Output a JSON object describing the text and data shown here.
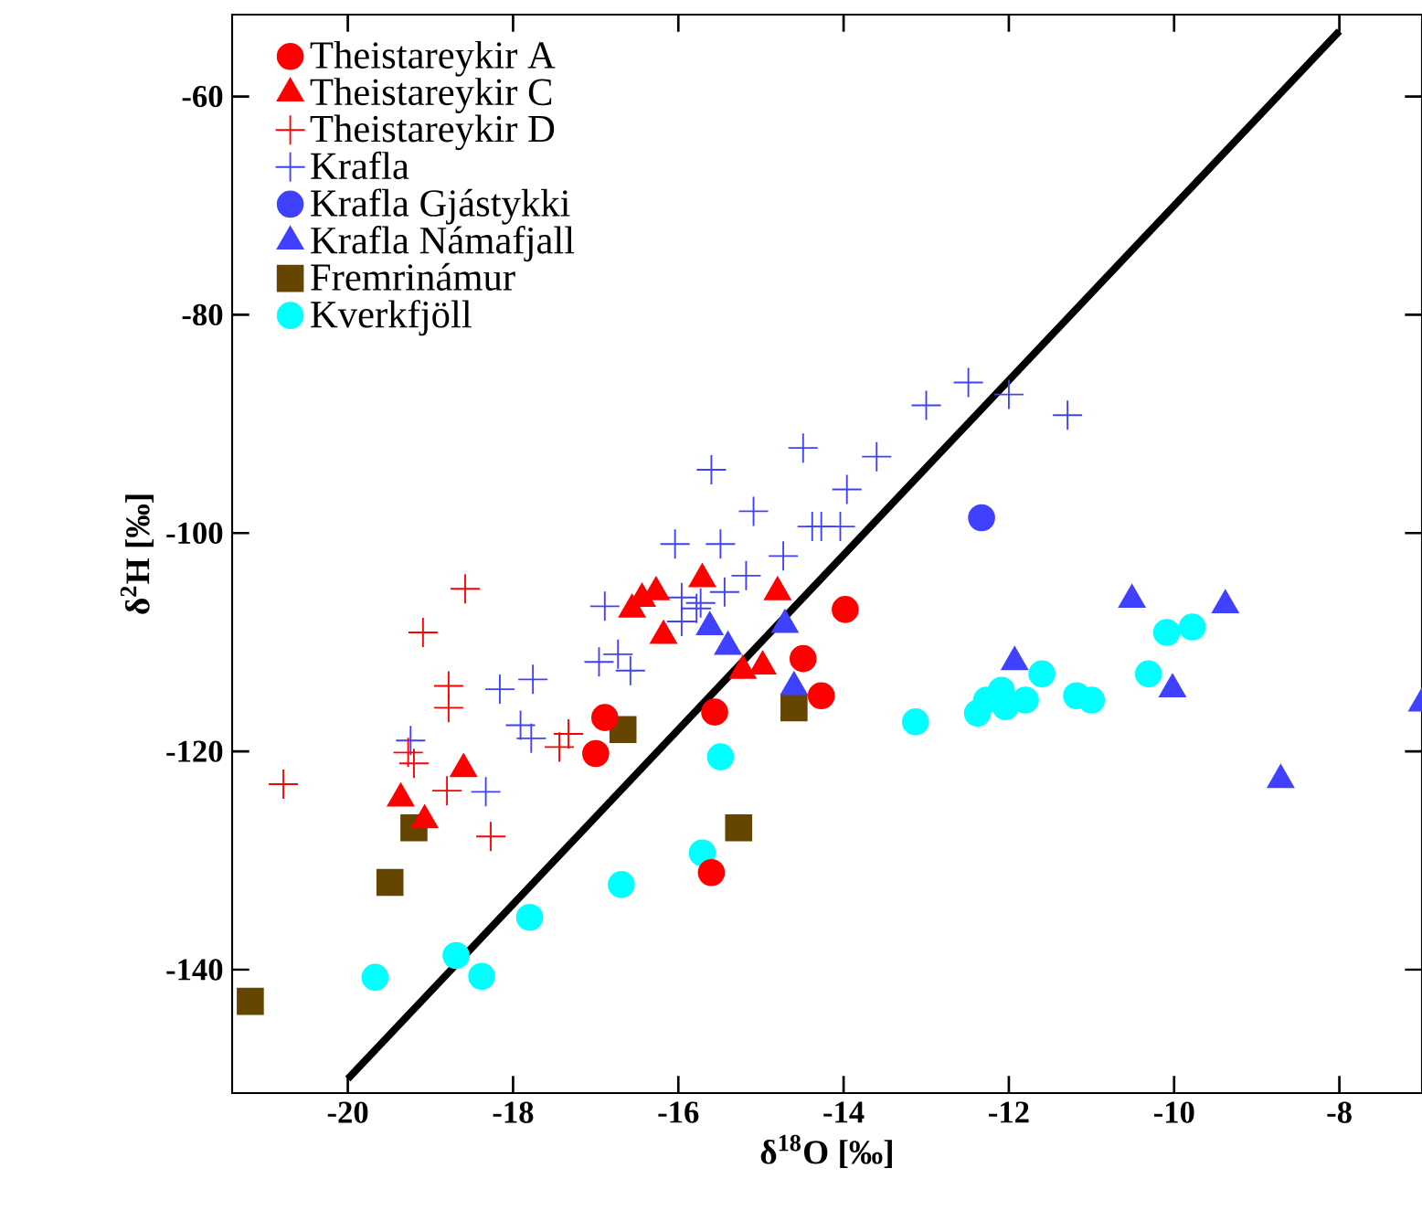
{
  "chart_data": {
    "type": "scatter",
    "xlabel": "δ$^{18}$O [‰]",
    "ylabel": "δ$^{2}$H [‰]",
    "xlim": [
      -21.4,
      -7
    ],
    "ylim": [
      -151.3,
      -52.5
    ],
    "xticks": [
      -20,
      -18,
      -16,
      -14,
      -12,
      -10,
      -8
    ],
    "yticks": [
      -140,
      -120,
      -100,
      -80,
      -60
    ],
    "grid": false,
    "legend": "top left",
    "series": [
      {
        "name": "Theistareykir A",
        "color": "#ff0000",
        "marker": "circle",
        "x": [
          -16.89,
          -17.0,
          -15.56,
          -14.49,
          -14.27,
          -13.98,
          -15.6
        ],
        "values": [
          -116.9,
          -120.2,
          -116.4,
          -111.5,
          -114.9,
          -107.0,
          -131.1
        ]
      },
      {
        "name": "Theistareykir C",
        "color": "#ff0000",
        "marker": "triangle",
        "x": [
          -18.6,
          -19.36,
          -19.07,
          -16.56,
          -16.44,
          -16.27,
          -16.18,
          -15.71,
          -14.8,
          -15.22,
          -14.98
        ],
        "values": [
          -121.6,
          -124.3,
          -126.3,
          -107.0,
          -106.0,
          -105.4,
          -109.4,
          -104.2,
          -105.4,
          -112.6,
          -112.2
        ]
      },
      {
        "name": "Theistareykir D",
        "color": "#ff0000",
        "marker": "cross",
        "x": [
          -18.58,
          -19.09,
          -18.78,
          -18.78,
          -20.78,
          -19.27,
          -19.2,
          -18.8,
          -18.27,
          -17.33,
          -17.44
        ],
        "values": [
          -105.1,
          -109.1,
          -114.0,
          -116.0,
          -123.0,
          -120.1,
          -121.1,
          -123.6,
          -127.8,
          -118.4,
          -119.6
        ]
      },
      {
        "name": "Krafla",
        "color": "#4040ff",
        "marker": "cross",
        "x": [
          -16.89,
          -19.24,
          -18.16,
          -17.76,
          -17.91,
          -17.78,
          -18.33,
          -16.96,
          -16.73,
          -16.58,
          -15.6,
          -14.49,
          -13.6,
          -15.09,
          -13.96,
          -16.04,
          -15.49,
          -14.73,
          -15.18,
          -15.44,
          -15.78,
          -15.96,
          -15.96,
          -15.73,
          -14.38,
          -14.27,
          -14.04,
          -13.0,
          -12.49,
          -12.0,
          -11.29
        ],
        "values": [
          -106.7,
          -119.0,
          -114.3,
          -113.4,
          -117.6,
          -118.8,
          -123.7,
          -111.8,
          -111.1,
          -112.6,
          -94.2,
          -92.2,
          -93.0,
          -98.0,
          -96.0,
          -101.0,
          -101.0,
          -102.1,
          -103.9,
          -105.4,
          -106.9,
          -105.9,
          -108.1,
          -106.4,
          -99.4,
          -99.4,
          -99.4,
          -88.3,
          -86.2,
          -87.3,
          -89.2
        ]
      },
      {
        "name": "Krafla Gjástykki",
        "color": "#4040ff",
        "marker": "circle",
        "x": [
          -12.33
        ],
        "values": [
          -98.6
        ]
      },
      {
        "name": "Krafla Námafjall",
        "color": "#4040ff",
        "marker": "triangle",
        "x": [
          -15.62,
          -15.4,
          -14.71,
          -14.6,
          -11.93,
          -10.51,
          -9.38,
          -10.02,
          -8.71,
          -7.0
        ],
        "values": [
          -108.6,
          -110.4,
          -108.4,
          -114.1,
          -111.8,
          -106.1,
          -106.6,
          -114.3,
          -122.6,
          -115.6
        ]
      },
      {
        "name": "Fremrinámur",
        "color": "#654500",
        "marker": "square",
        "x": [
          -21.18,
          -19.49,
          -19.2,
          -16.67,
          -14.6,
          -15.27
        ],
        "values": [
          -142.9,
          -132.0,
          -127.0,
          -118.0,
          -116.0,
          -127.0
        ]
      },
      {
        "name": "Kverkfjöll",
        "color": "#00ffff",
        "marker": "circle",
        "x": [
          -19.67,
          -18.69,
          -18.38,
          -17.8,
          -16.69,
          -15.49,
          -15.71,
          -13.13,
          -12.38,
          -12.27,
          -12.09,
          -12.04,
          -11.8,
          -11.6,
          -11.18,
          -11.0,
          -10.31,
          -10.09,
          -9.78
        ],
        "values": [
          -140.7,
          -138.7,
          -140.6,
          -135.2,
          -132.2,
          -120.5,
          -129.3,
          -117.3,
          -116.5,
          -115.3,
          -114.4,
          -115.9,
          -115.3,
          -112.9,
          -114.9,
          -115.3,
          -112.9,
          -109.1,
          -108.6
        ]
      },
      {
        "type": "line",
        "color": "#000000",
        "marker": "none",
        "line_style": "solid",
        "x": [
          -20,
          -8
        ],
        "values": [
          -150,
          -54
        ]
      }
    ]
  }
}
